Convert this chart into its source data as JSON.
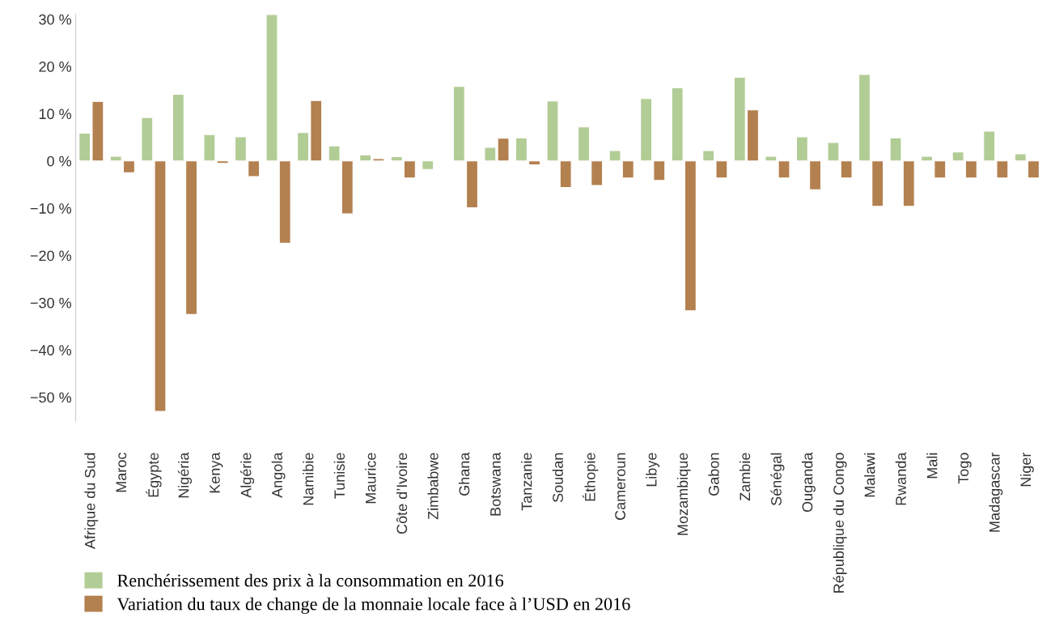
{
  "chart_data": {
    "type": "bar",
    "categories": [
      "Afrique du Sud",
      "Maroc",
      "Égypte",
      "Nigéria",
      "Kenya",
      "Algérie",
      "Angola",
      "Namibie",
      "Tunisie",
      "Maurice",
      "Côte d’Ivoire",
      "Zimbabwe",
      "Ghana",
      "Botswana",
      "Tanzanie",
      "Soudan",
      "Éthopie",
      "Cameroun",
      "Libye",
      "Mozambique",
      "Gabon",
      "Zambie",
      "Sénégal",
      "Ouganda",
      "République du Congo",
      "Malawi",
      "Rwanda",
      "Mali",
      "Togo",
      "Madagascar",
      "Niger"
    ],
    "series": [
      {
        "name": "Renchérissement des prix à la consommation en 2016",
        "color": "#b2cc96",
        "values": [
          5.9,
          1.0,
          9.2,
          14.1,
          5.6,
          5.1,
          31,
          6.0,
          3.2,
          1.3,
          0.9,
          -1.8,
          15.8,
          2.9,
          4.9,
          12.7,
          7.2,
          2.2,
          13.2,
          15.5,
          2.2,
          17.7,
          1.0,
          5.1,
          3.9,
          18.3,
          4.9,
          1.0,
          1.9,
          6.3,
          1.5
        ]
      },
      {
        "name": "Variation du taux de change de la monnaie locale face à l’USD en 2016",
        "color": "#b3804f",
        "values": [
          12.6,
          -2.5,
          -53,
          -32.5,
          -0.5,
          -3.3,
          -17.4,
          12.8,
          -11.2,
          0.5,
          -3.6,
          null,
          -9.9,
          4.8,
          -0.8,
          -5.6,
          -5.2,
          -3.6,
          -4.1,
          -31.7,
          -3.6,
          10.8,
          -3.6,
          -6.1,
          -3.6,
          -9.6,
          -9.6,
          -3.6,
          -3.6,
          -3.6,
          -3.6
        ]
      }
    ],
    "ylim": [
      -55,
      31
    ],
    "yticks": [
      {
        "value": 30,
        "label": "30 %"
      },
      {
        "value": 20,
        "label": "20 %"
      },
      {
        "value": 10,
        "label": "10 %"
      },
      {
        "value": 0,
        "label": "0 %"
      },
      {
        "value": -10,
        "label": "−10 %"
      },
      {
        "value": -20,
        "label": "−20 %"
      },
      {
        "value": -30,
        "label": "−30 %"
      },
      {
        "value": -40,
        "label": "−40 %"
      },
      {
        "value": -50,
        "label": "−50 %"
      }
    ],
    "grid": false,
    "legend": "bottom left"
  }
}
